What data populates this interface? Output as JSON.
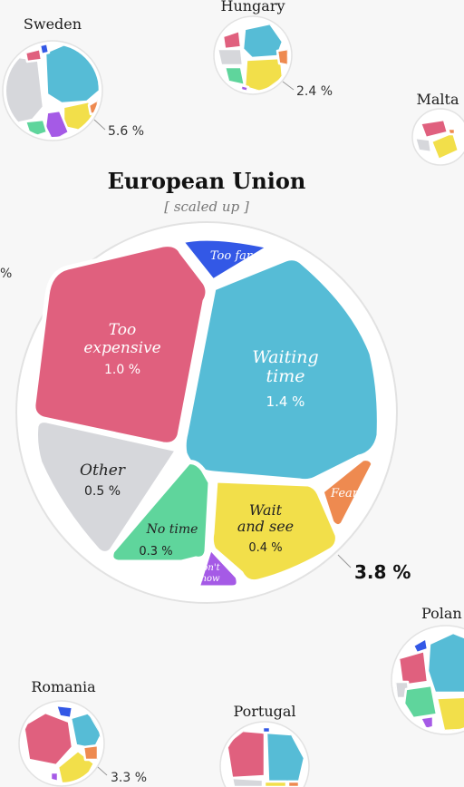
{
  "colors": {
    "too_expensive": "#e0607e",
    "waiting_time": "#56bcd6",
    "too_far": "#3358e6",
    "other": "#d6d7db",
    "no_time": "#5fd59c",
    "wait_and_see": "#f2df4a",
    "fear": "#ee8a50",
    "dont_know": "#a55ae6"
  },
  "chart_data": {
    "type": "voronoi-treemap",
    "title": "European Union",
    "subtitle": "[ scaled up ]",
    "total_label": "3.8 %",
    "segments": [
      {
        "label": "Too expensive",
        "value_label": "1.0 %",
        "value": 1.0
      },
      {
        "label": "Waiting time",
        "value_label": "1.4 %",
        "value": 1.4
      },
      {
        "label": "Too far",
        "value_label": "",
        "value": null
      },
      {
        "label": "Other",
        "value_label": "0.5 %",
        "value": 0.5
      },
      {
        "label": "No time",
        "value_label": "0.3 %",
        "value": 0.3
      },
      {
        "label": "Wait and see",
        "value_label": "0.4 %",
        "value": 0.4
      },
      {
        "label": "Fear",
        "value_label": "",
        "value": null
      },
      {
        "label": "Don't know",
        "value_label": "",
        "value": null
      }
    ],
    "countries": [
      {
        "name": "Sweden",
        "value_label": "5.6 %",
        "value": 5.6
      },
      {
        "name": "Hungary",
        "value_label": "2.4 %",
        "value": 2.4
      },
      {
        "name": "Malta",
        "value_label": "",
        "value": null
      },
      {
        "name": "Polan",
        "value_label": "",
        "value": null
      },
      {
        "name": "Romania",
        "value_label": "3.3 %",
        "value": 3.3
      },
      {
        "name": "Portugal",
        "value_label": "",
        "value": null
      }
    ],
    "left_edge_fragment": "%"
  }
}
